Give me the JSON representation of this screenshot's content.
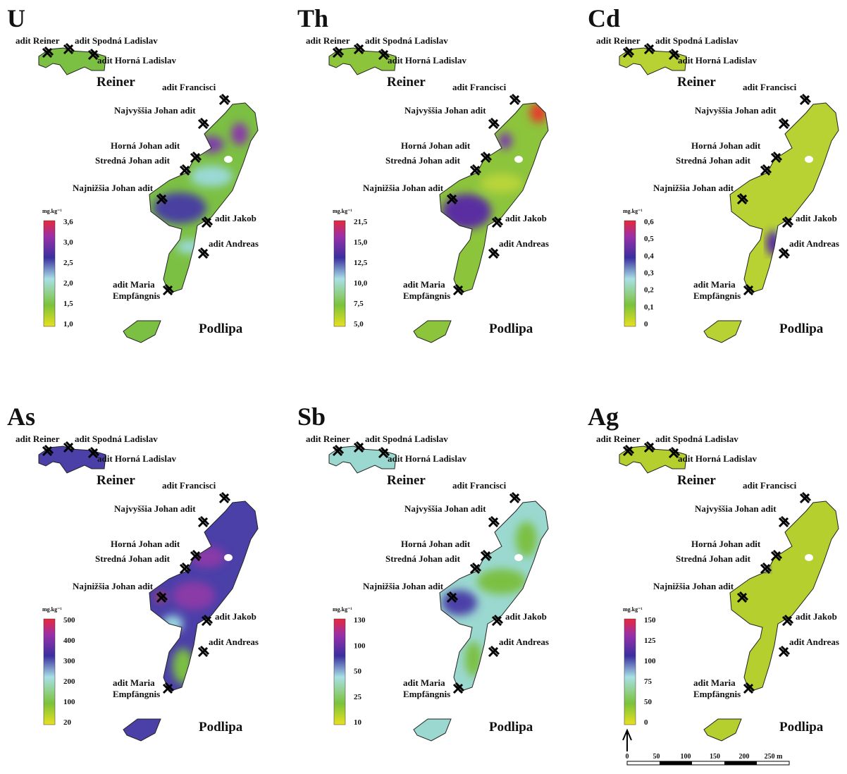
{
  "panels": [
    {
      "element": "U",
      "unit": "mg.kg⁻¹",
      "legend": [
        "3,6",
        "3,0",
        "2,5",
        "2,0",
        "1,5",
        "1,0"
      ]
    },
    {
      "element": "Th",
      "unit": "mg.kg⁻¹",
      "legend": [
        "21,5",
        "15,0",
        "12,5",
        "10,0",
        "7,5",
        "5,0"
      ]
    },
    {
      "element": "Cd",
      "unit": "mg.kg⁻¹",
      "legend": [
        "0,6",
        "0,5",
        "0,4",
        "0,3",
        "0,2",
        "0,1",
        "0"
      ]
    },
    {
      "element": "As",
      "unit": "mg.kg⁻¹",
      "legend": [
        "500",
        "400",
        "300",
        "200",
        "100",
        "20"
      ]
    },
    {
      "element": "Sb",
      "unit": "mg.kg⁻¹",
      "legend": [
        "130",
        "100",
        "50",
        "25",
        "10"
      ]
    },
    {
      "element": "Ag",
      "unit": "mg.kg⁻¹",
      "legend": [
        "150",
        "125",
        "100",
        "75",
        "50",
        "0"
      ]
    }
  ],
  "sites": [
    "adit Reiner",
    "adit Spodná Ladislav",
    "adit Horná Ladislav",
    "adit Francisci",
    "Najvyššia Johan adit",
    "Horná Johan adit",
    "Stredná Johan adit",
    "Najnižšia Johan adit",
    "adit  Jakob",
    "adit Andreas",
    [
      "adit Maria",
      "Empfängnis"
    ]
  ],
  "areas": [
    "Reiner",
    "Podlipa"
  ],
  "scale_bar": [
    "0",
    "50",
    "100",
    "150",
    "200",
    "250 m"
  ]
}
